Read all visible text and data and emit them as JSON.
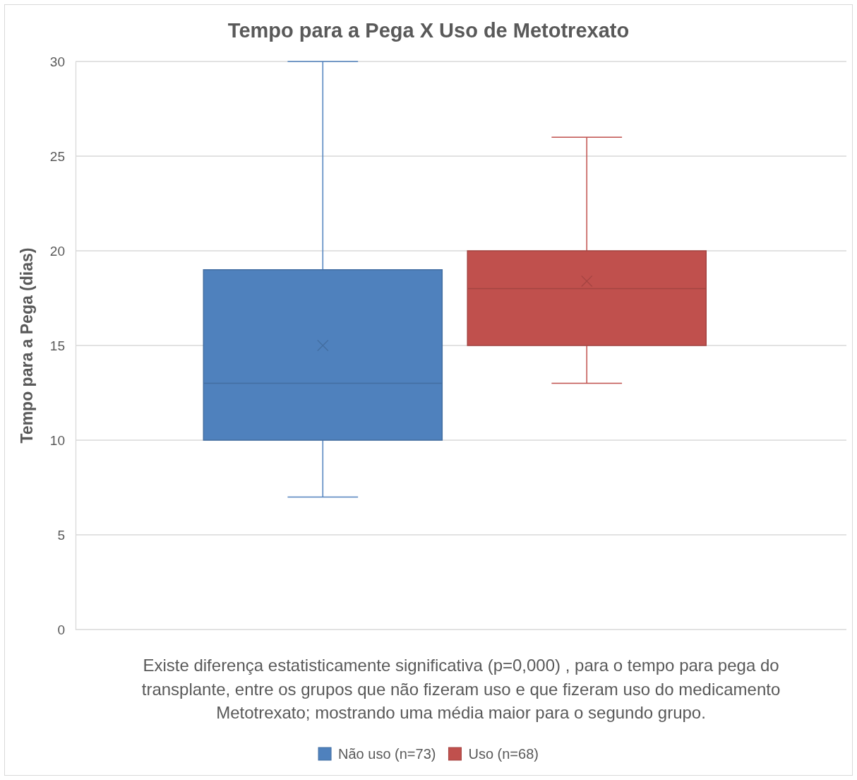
{
  "chart_data": {
    "type": "box",
    "title": "Tempo para a Pega X Uso de Metotrexato",
    "ylabel": "Tempo para a Pega (dias)",
    "annotations": [
      "Existe diferença estatisticamente significativa (p=0,000) , para o tempo para pega do transplante, entre os grupos que não fizeram uso e que fizeram uso do medicamento Metotrexato; mostrando uma média maior para o segundo grupo."
    ],
    "categories": [
      null
    ],
    "series": [
      {
        "name": "Não uso (n=73)",
        "color": "#4f81bd",
        "boxes": [
          {
            "low": 7,
            "q1": 10,
            "median": 13,
            "q3": 19,
            "high": 30,
            "mean": 15
          }
        ]
      },
      {
        "name": "Uso (n=68)",
        "color": "#c0504d",
        "boxes": [
          {
            "low": 13,
            "q1": 15,
            "median": 18,
            "q3": 20,
            "high": 26,
            "mean": 18.4
          }
        ]
      }
    ],
    "ylim": [
      0,
      30
    ],
    "yticks": [
      0,
      5,
      10,
      15,
      20,
      25,
      30
    ],
    "grid": "y",
    "legend": "bottom",
    "marker": "cross"
  }
}
